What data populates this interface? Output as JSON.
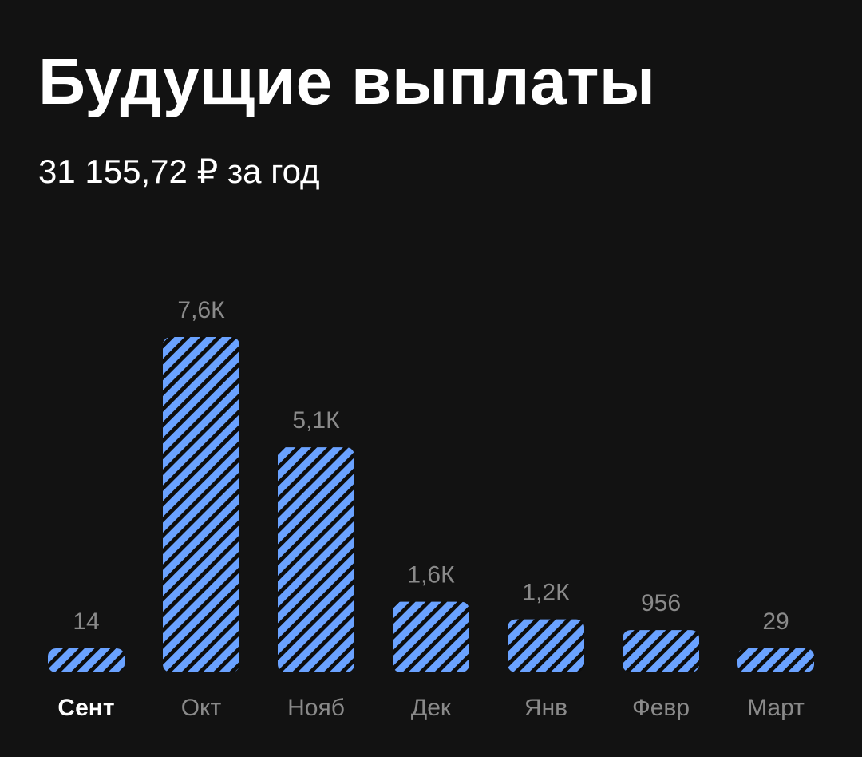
{
  "header": {
    "title": "Будущие выплаты",
    "subtitle": "31 155,72 ₽ за год"
  },
  "colors": {
    "background": "#121212",
    "bar_fill": "#6aa2ff",
    "bar_stripe": "#0d0d0d",
    "label": "#8a8a8a",
    "active_label": "#ffffff"
  },
  "chart_data": {
    "type": "bar",
    "categories": [
      "Сент",
      "Окт",
      "Нояб",
      "Дек",
      "Янв",
      "Февр",
      "Март"
    ],
    "values": [
      14,
      7600,
      5100,
      1600,
      1200,
      956,
      29
    ],
    "value_labels": [
      "14",
      "7,6К",
      "5,1К",
      "1,6К",
      "1,2К",
      "956",
      "29"
    ],
    "active_category": "Сент",
    "title": "",
    "xlabel": "",
    "ylabel": "",
    "ylim": [
      0,
      7600
    ],
    "grid": false,
    "legend": "none"
  }
}
